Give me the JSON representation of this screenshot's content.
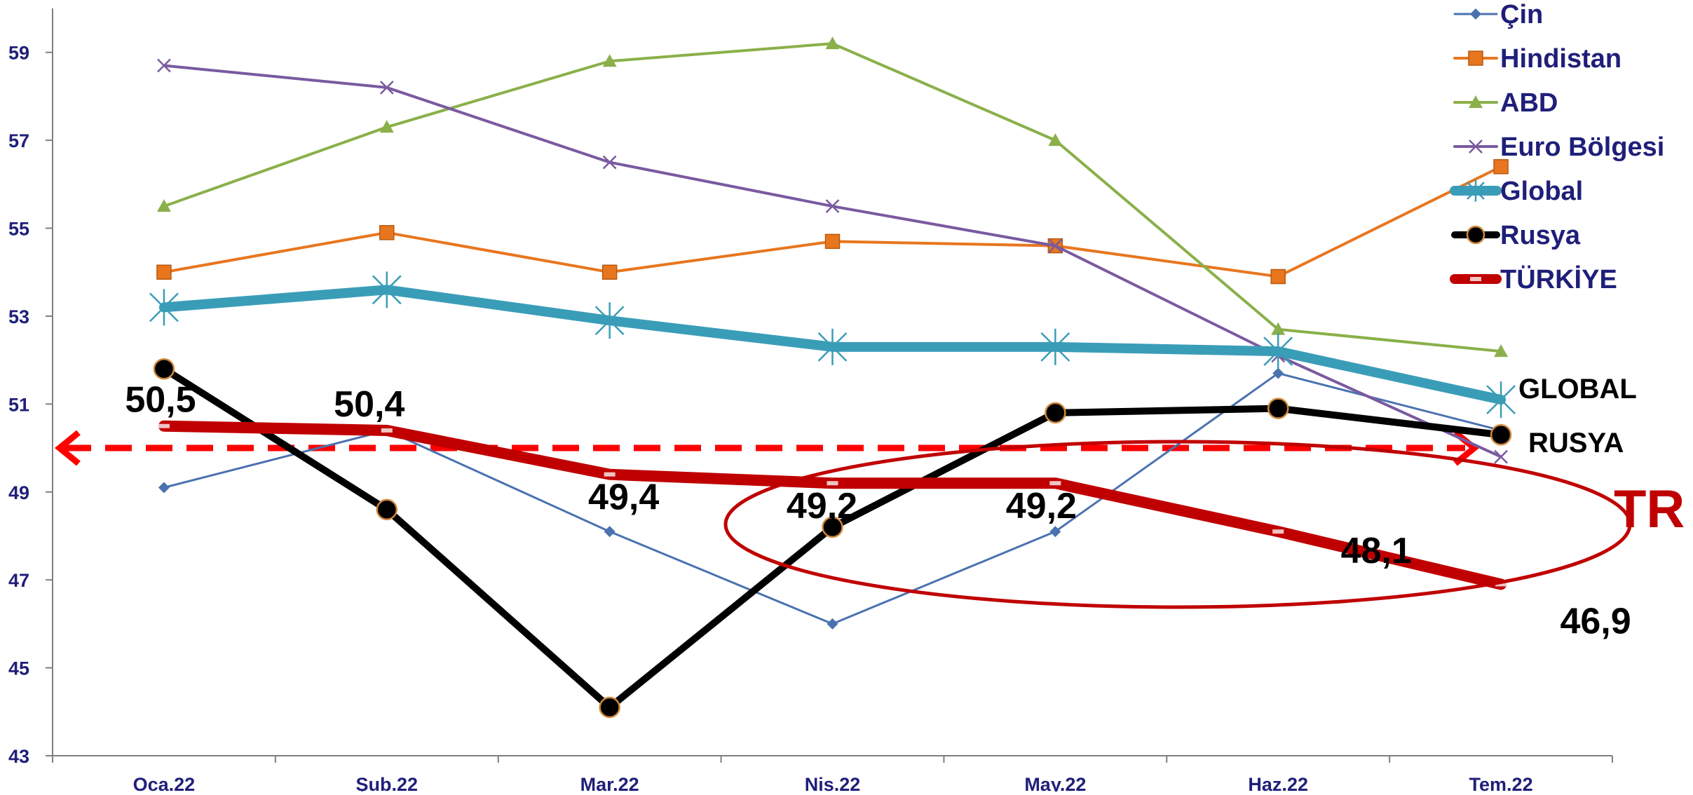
{
  "chart_data": {
    "type": "line",
    "categories": [
      "Oca.22",
      "Şub.22",
      "Mar.22",
      "Nis.22",
      "May.22",
      "Haz.22",
      "Tem.22"
    ],
    "ylim": [
      43,
      60
    ],
    "yticks": [
      43,
      45,
      47,
      49,
      51,
      53,
      55,
      57,
      59
    ],
    "ytick_labels": [
      "43",
      "45",
      "47",
      "49",
      "51",
      "53",
      "55",
      "57",
      "59"
    ],
    "series": [
      {
        "name": "Çin",
        "values": [
          49.1,
          50.4,
          48.1,
          46.0,
          48.1,
          51.7,
          50.4
        ],
        "color": "#4a72b0",
        "marker": "diamond",
        "width": 3
      },
      {
        "name": "Hindistan",
        "values": [
          54.0,
          54.9,
          54.0,
          54.7,
          54.6,
          53.9,
          56.4
        ],
        "color": "#e8761e",
        "marker": "square",
        "width": 4
      },
      {
        "name": "ABD",
        "values": [
          55.5,
          57.3,
          58.8,
          59.2,
          57.0,
          52.7,
          52.2
        ],
        "color": "#8ab04a",
        "marker": "triangle",
        "width": 4
      },
      {
        "name": "Euro Bölgesi",
        "values": [
          58.7,
          58.2,
          56.5,
          55.5,
          54.6,
          52.1,
          49.8
        ],
        "color": "#7a5aa0",
        "marker": "x",
        "width": 4
      },
      {
        "name": "Global",
        "values": [
          53.2,
          53.6,
          52.9,
          52.3,
          52.3,
          52.2,
          51.1
        ],
        "color": "#3a9db8",
        "marker": "star",
        "width": 14
      },
      {
        "name": "Rusya",
        "values": [
          51.8,
          48.6,
          44.1,
          48.2,
          50.8,
          50.9,
          50.3
        ],
        "color": "#000000",
        "marker": "circle",
        "width": 10
      },
      {
        "name": "TÜRKİYE",
        "values": [
          50.5,
          50.4,
          49.4,
          49.2,
          49.2,
          48.1,
          46.9
        ],
        "color": "#c00000",
        "marker": "dash",
        "width": 16
      }
    ],
    "data_labels": [
      "50,5",
      "50,4",
      "49,4",
      "49,2",
      "49,2",
      "48,1",
      "46,9"
    ],
    "reference_line": {
      "value": 50,
      "color": "#ff0000",
      "style": "dashed",
      "arrows": "both"
    },
    "annotations": {
      "global": "GLOBAL",
      "rusya": "RUSYA",
      "tr": "TR"
    },
    "legend_position": "top-right",
    "grid": false
  }
}
